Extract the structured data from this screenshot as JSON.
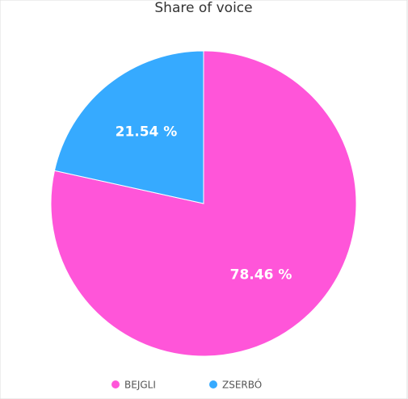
{
  "chart_data": {
    "type": "pie",
    "title": "Share of voice",
    "categories": [
      "BEJGLI",
      "ZSERBÓ"
    ],
    "values": [
      78.46,
      21.54
    ],
    "value_labels": [
      "78.46 %",
      "21.54 %"
    ],
    "colors": [
      "#ff55d9",
      "#36aaff"
    ],
    "legend": "bottom"
  }
}
